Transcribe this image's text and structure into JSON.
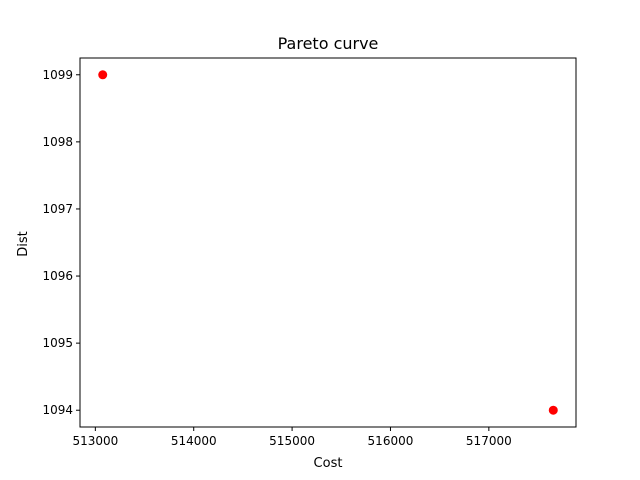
{
  "chart_data": {
    "type": "scatter",
    "title": "Pareto curve",
    "xlabel": "Cost",
    "ylabel": "Dist",
    "xlim": [
      512844,
      517886
    ],
    "ylim": [
      1093.75,
      1099.25
    ],
    "x_ticks": [
      "513000",
      "514000",
      "515000",
      "516000",
      "517000"
    ],
    "y_ticks": [
      "1094",
      "1095",
      "1096",
      "1097",
      "1098",
      "1099"
    ],
    "series": [
      {
        "points": [
          {
            "x": 513075,
            "y": 1099
          },
          {
            "x": 517655,
            "y": 1094
          }
        ],
        "color": "#ff0000",
        "marker": "circle"
      }
    ],
    "grid": false,
    "legend": "none"
  }
}
